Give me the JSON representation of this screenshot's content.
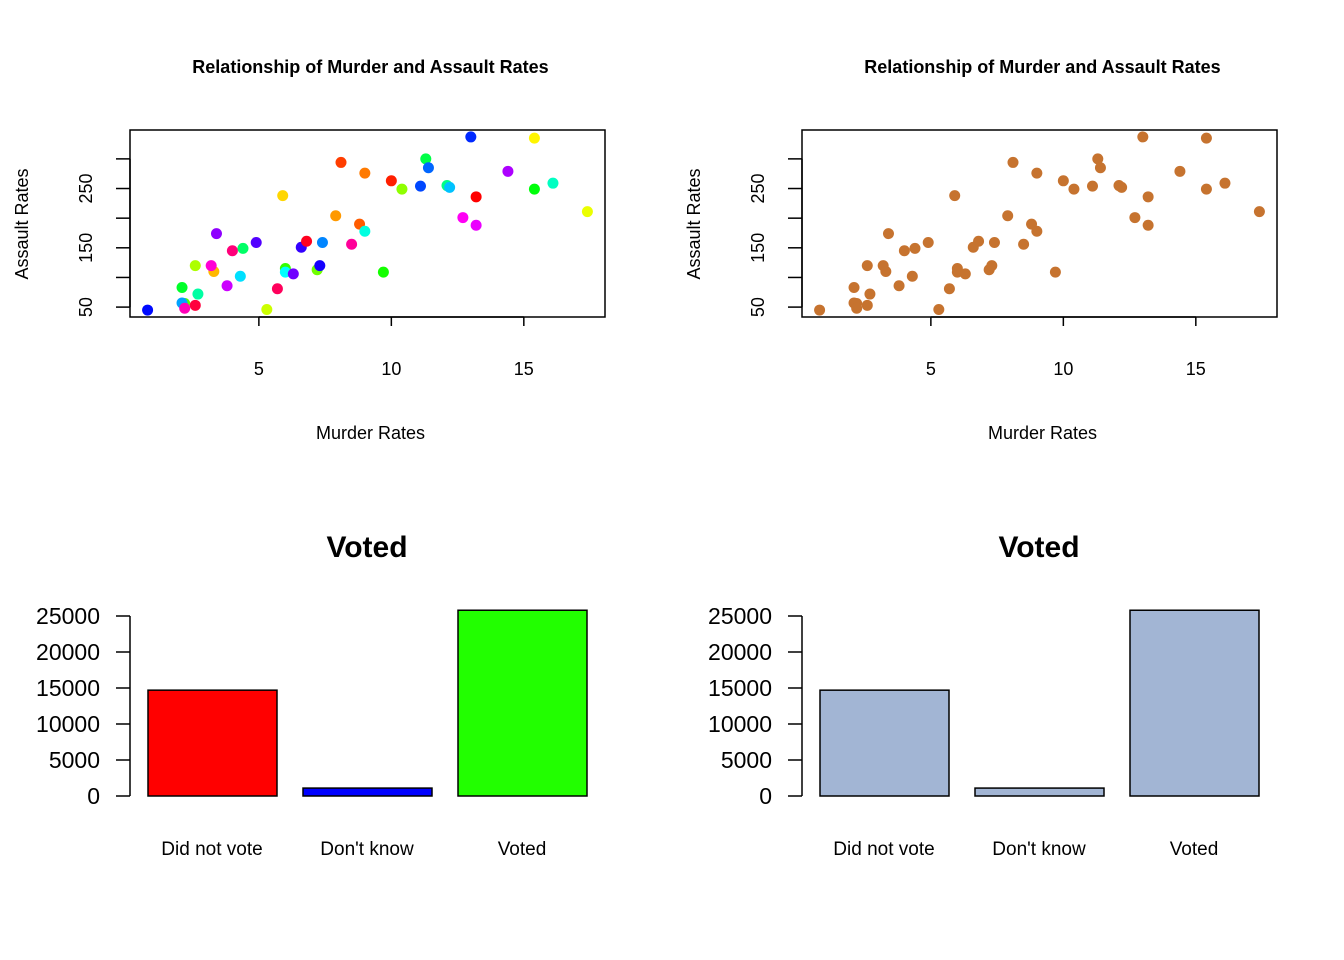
{
  "chart_data": [
    {
      "type": "scatter",
      "title": "Relationship of Murder and Assault Rates",
      "xlabel": "Murder Rates",
      "ylabel": "Assault Rates",
      "xlim": [
        0.136,
        18.064
      ],
      "ylim": [
        33.3,
        348.7
      ],
      "xticks": [
        5,
        10,
        15
      ],
      "yticks": [
        50,
        100,
        150,
        200,
        250,
        300
      ],
      "ytick_labels": [
        "50",
        "",
        "150",
        "",
        "250",
        ""
      ],
      "color_scheme": "rainbow",
      "x": [
        13.2,
        10.0,
        8.1,
        8.8,
        9.0,
        7.9,
        3.3,
        5.9,
        15.4,
        17.4,
        5.3,
        2.6,
        10.4,
        7.2,
        2.2,
        6.0,
        9.7,
        15.4,
        2.1,
        11.3,
        4.4,
        12.1,
        2.7,
        16.1,
        9.0,
        6.0,
        4.3,
        12.2,
        2.1,
        7.4,
        11.4,
        11.1,
        13.0,
        0.8,
        7.3,
        6.6,
        4.9,
        6.3,
        3.4,
        14.4,
        3.8,
        13.2,
        12.7,
        3.2,
        2.2,
        8.5,
        4.0,
        5.7,
        2.6,
        6.8
      ],
      "y": [
        236,
        263,
        294,
        190,
        276,
        204,
        110,
        238,
        335,
        211,
        46,
        120,
        249,
        113,
        56,
        115,
        109,
        249,
        83,
        300,
        149,
        255,
        72,
        259,
        178,
        109,
        102,
        252,
        57,
        159,
        285,
        254,
        337,
        45,
        120,
        151,
        159,
        106,
        174,
        279,
        86,
        188,
        201,
        120,
        48,
        156,
        145,
        81,
        53,
        161
      ]
    },
    {
      "type": "scatter",
      "title": "Relationship of Murder and Assault Rates",
      "xlabel": "Murder Rates",
      "ylabel": "Assault Rates",
      "xlim": [
        0.136,
        18.064
      ],
      "ylim": [
        33.3,
        348.7
      ],
      "xticks": [
        5,
        10,
        15
      ],
      "yticks": [
        50,
        100,
        150,
        200,
        250,
        300
      ],
      "ytick_labels": [
        "50",
        "",
        "150",
        "",
        "250",
        ""
      ],
      "color": "#C6732F",
      "same_data_as": 0
    },
    {
      "type": "bar",
      "title": "Voted",
      "categories": [
        "Did not vote",
        "Don't know",
        "Voted"
      ],
      "values": [
        14700,
        1100,
        25800
      ],
      "colors": [
        "#FF0000",
        "#0000FF",
        "#22FF00"
      ],
      "yticks": [
        0,
        5000,
        10000,
        15000,
        20000,
        25000
      ],
      "ytick_labels": [
        "0",
        "5000",
        "10000",
        "15000",
        "20000",
        "25000"
      ]
    },
    {
      "type": "bar",
      "title": "Voted",
      "categories": [
        "Did not vote",
        "Don't know",
        "Voted"
      ],
      "values": [
        14700,
        1100,
        25800
      ],
      "colors": [
        "#A2B5D4",
        "#A2B5D4",
        "#A2B5D4"
      ],
      "yticks": [
        0,
        5000,
        10000,
        15000,
        20000,
        25000
      ],
      "ytick_labels": [
        "0",
        "5000",
        "10000",
        "15000",
        "20000",
        "25000"
      ]
    }
  ]
}
